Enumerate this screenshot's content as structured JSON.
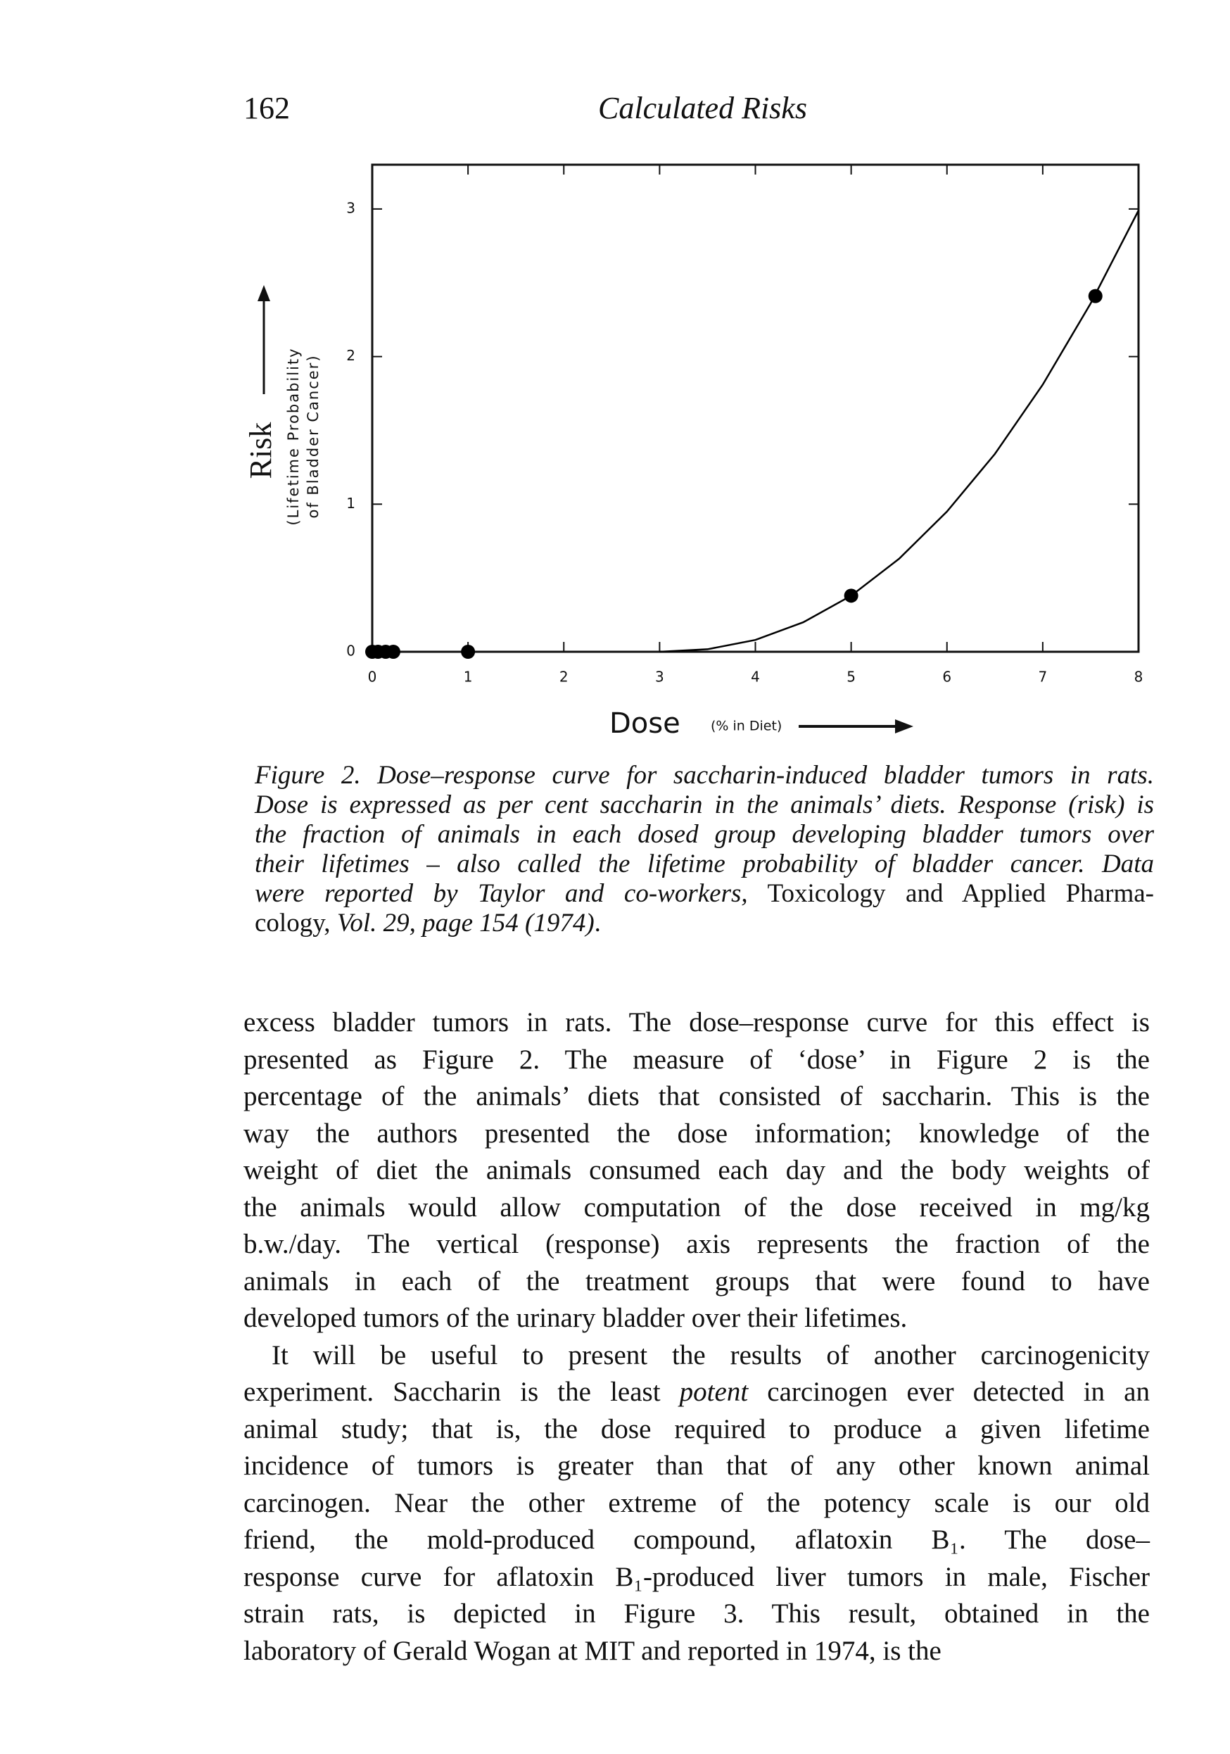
{
  "header": {
    "page_number": "162",
    "running_title": "Calculated Risks"
  },
  "chart_data": {
    "type": "scatter",
    "y_label": "Risk",
    "y_sublabel": [
      "(Lifetime Probability",
      "of Bladder Cancer)"
    ],
    "x_label": "Dose",
    "x_sublabel": "(% in Diet)",
    "xlim": [
      0,
      8
    ],
    "xticks": [
      0,
      1,
      2,
      3,
      4,
      5,
      6,
      7,
      8
    ],
    "ylim": [
      0,
      3.3
    ],
    "yticks": [
      0,
      1,
      2,
      3
    ],
    "series": [
      {
        "color": "#000000",
        "marker": "circle",
        "x": [
          0,
          0.06,
          0.14,
          0.22,
          1,
          5,
          7.55
        ],
        "values": [
          0,
          0,
          0,
          0,
          0,
          0.38,
          2.41
        ]
      },
      {
        "color": "#000000",
        "marker": "none",
        "x": [
          3,
          3.5,
          4,
          4.5,
          5,
          5.5,
          6,
          6.5,
          7,
          7.5,
          8
        ],
        "values": [
          0,
          0.017,
          0.08,
          0.2,
          0.38,
          0.63,
          0.95,
          1.34,
          1.81,
          2.36,
          2.99
        ]
      }
    ]
  },
  "caption": {
    "lines": [
      "Figure 2. Dose–response curve for saccharin-induced bladder tumors in rats.",
      "Dose is expressed as per cent saccharin in the animals’ diets. Response (risk) is",
      "the fraction of animals in each dosed group developing bladder tumors over",
      "their lifetimes – also called the lifetime probability of bladder cancer. Data",
      [
        "were reported by Taylor and co-workers,",
        " Toxicology and Applied Pharma-"
      ],
      [
        "cology, ",
        "Vol. 29, page 154 (1974)",
        "."
      ]
    ]
  },
  "body": {
    "paragraphs": [
      [
        "excess bladder tumors in rats. The dose–response curve for this effect is",
        "presented as Figure 2. The measure of ‘dose’ in Figure 2 is the",
        "percentage of the animals’ diets that consisted of saccharin. This is the",
        "way the authors presented the dose information; knowledge of the",
        "weight of diet the animals consumed each day and the body weights of",
        "the animals would allow computation of the dose received in mg/kg",
        "b.w./day. The vertical (response) axis represents the fraction of the",
        "animals in each of the treatment groups that were found to have",
        "developed tumors of the urinary bladder over their lifetimes."
      ],
      [
        "It will be useful to present the results of another carcinogenicity",
        [
          "experiment. Saccharin is the least ",
          "potent",
          " carcinogen ever detected in an"
        ],
        "animal study; that is, the dose required to produce a given lifetime",
        "incidence of tumors is greater than that of any other known animal",
        "carcinogen. Near the other extreme of the potency scale is our old",
        "friend, the mold-produced compound, aflatoxin B₁. The dose–",
        "response curve for aflatoxin B₁-produced liver tumors in male, Fischer",
        "strain rats, is depicted in Figure 3. This result, obtained in the",
        "laboratory of Gerald Wogan at MIT and reported in 1974, is the"
      ]
    ]
  }
}
